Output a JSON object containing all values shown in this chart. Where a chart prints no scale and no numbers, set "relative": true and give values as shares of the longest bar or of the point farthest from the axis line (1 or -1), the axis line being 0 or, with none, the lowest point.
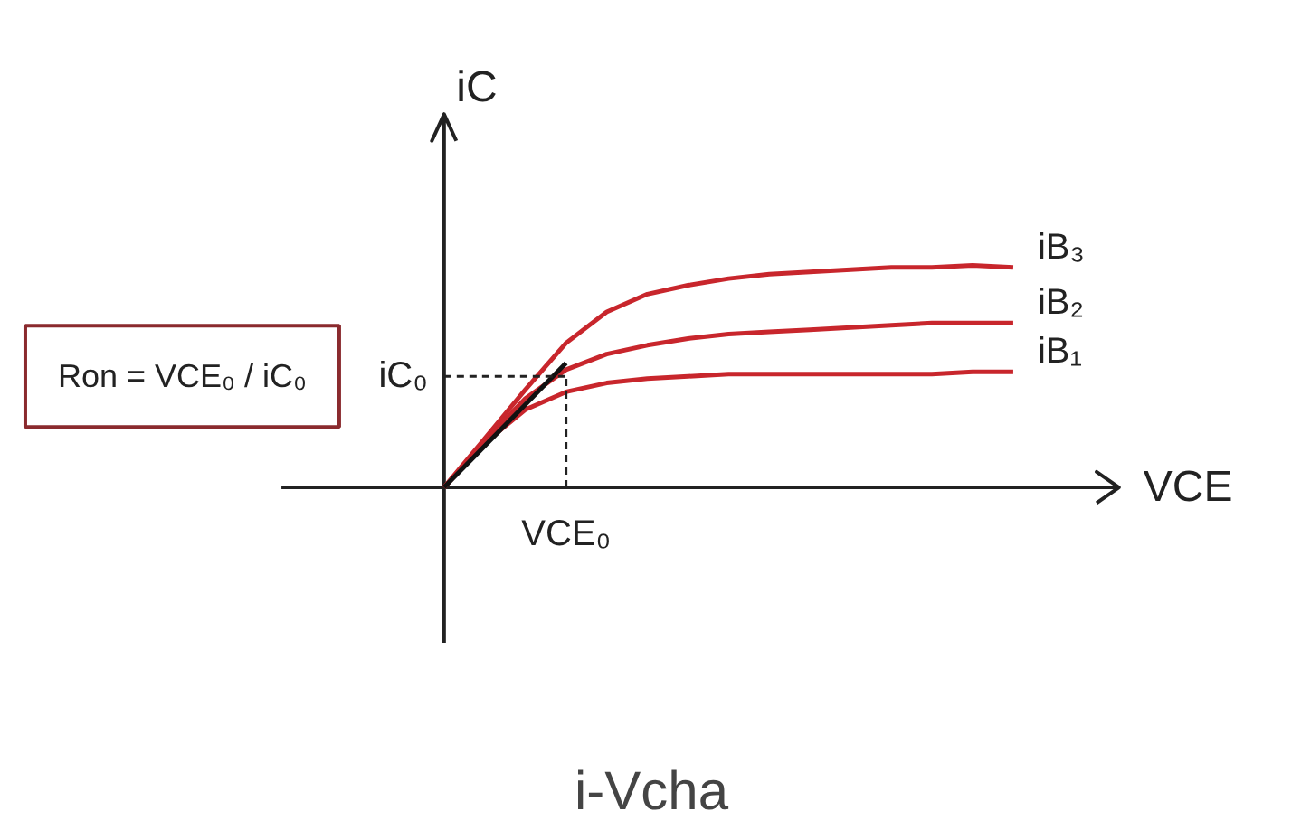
{
  "chart_data": {
    "type": "line",
    "title": "i-Vcha",
    "xlabel": "VCE",
    "ylabel": "iC",
    "relative": true,
    "tick_labels": false,
    "grid": false,
    "legend": false,
    "categories": [
      null,
      null,
      null,
      null,
      null,
      null,
      null,
      null,
      null,
      null,
      null,
      null,
      null,
      null,
      null
    ],
    "series": [
      {
        "name": "iB₃",
        "color": "#c8262c",
        "values": [
          0,
          0.22,
          0.44,
          0.65,
          0.79,
          0.87,
          0.91,
          0.94,
          0.96,
          0.97,
          0.98,
          0.99,
          0.99,
          1,
          0.99
        ]
      },
      {
        "name": "iB₂",
        "color": "#c8262c",
        "values": [
          0,
          0.21,
          0.4,
          0.53,
          0.6,
          0.64,
          0.67,
          0.69,
          0.7,
          0.71,
          0.72,
          0.73,
          0.74,
          0.74,
          0.74
        ]
      },
      {
        "name": "iB₁",
        "color": "#c8262c",
        "values": [
          0,
          0.2,
          0.35,
          0.43,
          0.47,
          0.49,
          0.5,
          0.51,
          0.51,
          0.51,
          0.51,
          0.51,
          0.51,
          0.52,
          0.52
        ]
      },
      {
        "color": "#111111",
        "values": [
          0,
          null,
          null,
          0.56,
          null,
          null,
          null,
          null,
          null,
          null,
          null,
          null,
          null,
          null,
          null
        ]
      }
    ],
    "ref_lines": [
      {
        "axis": "y",
        "value": 0.5,
        "label": "iC₀",
        "color": "#222222",
        "line_style": "dashed"
      }
    ],
    "annotations": [
      "Ron = VCE₀ / iC₀",
      "VCE₀"
    ]
  }
}
